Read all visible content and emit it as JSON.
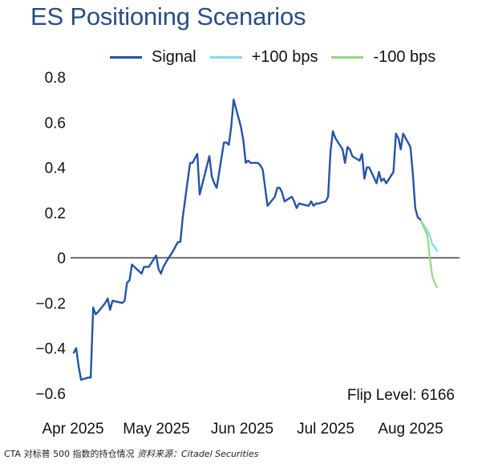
{
  "chart_data": {
    "type": "line",
    "title": "ES Positioning Scenarios",
    "x_ticks": [
      "Apr 2025",
      "May 2025",
      "Jun 2025",
      "Jul 2025",
      "Aug 2025"
    ],
    "y_ticks": [
      "0.8",
      "0.6",
      "0.4",
      "0.2",
      "0",
      "−0.2",
      "−0.4",
      "−0.6"
    ],
    "ylim": [
      -0.65,
      0.83
    ],
    "zero_line": true,
    "grid": false,
    "legend_position": "top",
    "annotation": "Flip Level: 6166",
    "series": [
      {
        "name": "Signal",
        "color": "#2553a6",
        "points": [
          [
            "2025-04-01",
            -0.42
          ],
          [
            "2025-04-02",
            -0.4
          ],
          [
            "2025-04-03",
            -0.48
          ],
          [
            "2025-04-04",
            -0.54
          ],
          [
            "2025-04-07",
            -0.53
          ],
          [
            "2025-04-08",
            -0.53
          ],
          [
            "2025-04-09",
            -0.22
          ],
          [
            "2025-04-10",
            -0.25
          ],
          [
            "2025-04-11",
            -0.24
          ],
          [
            "2025-04-14",
            -0.2
          ],
          [
            "2025-04-15",
            -0.18
          ],
          [
            "2025-04-16",
            -0.23
          ],
          [
            "2025-04-17",
            -0.19
          ],
          [
            "2025-04-21",
            -0.2
          ],
          [
            "2025-04-22",
            -0.19
          ],
          [
            "2025-04-23",
            -0.11
          ],
          [
            "2025-04-24",
            -0.1
          ],
          [
            "2025-04-25",
            -0.03
          ],
          [
            "2025-04-28",
            -0.06
          ],
          [
            "2025-04-29",
            -0.07
          ],
          [
            "2025-04-30",
            -0.04
          ],
          [
            "2025-05-01",
            -0.04
          ],
          [
            "2025-05-02",
            -0.04
          ],
          [
            "2025-05-05",
            0.01
          ],
          [
            "2025-05-06",
            -0.05
          ],
          [
            "2025-05-07",
            -0.07
          ],
          [
            "2025-05-08",
            -0.04
          ],
          [
            "2025-05-09",
            -0.02
          ],
          [
            "2025-05-12",
            0.03
          ],
          [
            "2025-05-13",
            0.05
          ],
          [
            "2025-05-14",
            0.07
          ],
          [
            "2025-05-15",
            0.07
          ],
          [
            "2025-05-16",
            0.18
          ],
          [
            "2025-05-19",
            0.42
          ],
          [
            "2025-05-20",
            0.42
          ],
          [
            "2025-05-21",
            0.44
          ],
          [
            "2025-05-22",
            0.46
          ],
          [
            "2025-05-23",
            0.28
          ],
          [
            "2025-05-27",
            0.45
          ],
          [
            "2025-05-28",
            0.36
          ],
          [
            "2025-05-29",
            0.33
          ],
          [
            "2025-05-30",
            0.31
          ],
          [
            "2025-06-02",
            0.51
          ],
          [
            "2025-06-03",
            0.51
          ],
          [
            "2025-06-04",
            0.5
          ],
          [
            "2025-06-05",
            0.58
          ],
          [
            "2025-06-06",
            0.7
          ],
          [
            "2025-06-09",
            0.58
          ],
          [
            "2025-06-10",
            0.52
          ],
          [
            "2025-06-11",
            0.42
          ],
          [
            "2025-06-12",
            0.43
          ],
          [
            "2025-06-13",
            0.42
          ],
          [
            "2025-06-16",
            0.42
          ],
          [
            "2025-06-17",
            0.41
          ],
          [
            "2025-06-18",
            0.39
          ],
          [
            "2025-06-20",
            0.23
          ],
          [
            "2025-06-23",
            0.27
          ],
          [
            "2025-06-24",
            0.31
          ],
          [
            "2025-06-25",
            0.31
          ],
          [
            "2025-06-26",
            0.29
          ],
          [
            "2025-06-27",
            0.25
          ],
          [
            "2025-06-30",
            0.27
          ],
          [
            "2025-07-01",
            0.25
          ],
          [
            "2025-07-02",
            0.22
          ],
          [
            "2025-07-03",
            0.24
          ],
          [
            "2025-07-07",
            0.23
          ],
          [
            "2025-07-08",
            0.25
          ],
          [
            "2025-07-09",
            0.23
          ],
          [
            "2025-07-10",
            0.24
          ],
          [
            "2025-07-11",
            0.24
          ],
          [
            "2025-07-14",
            0.25
          ],
          [
            "2025-07-15",
            0.27
          ],
          [
            "2025-07-16",
            0.47
          ],
          [
            "2025-07-17",
            0.56
          ],
          [
            "2025-07-18",
            0.53
          ],
          [
            "2025-07-21",
            0.48
          ],
          [
            "2025-07-22",
            0.42
          ],
          [
            "2025-07-23",
            0.49
          ],
          [
            "2025-07-24",
            0.48
          ],
          [
            "2025-07-25",
            0.45
          ],
          [
            "2025-07-28",
            0.43
          ],
          [
            "2025-07-29",
            0.46
          ],
          [
            "2025-07-30",
            0.35
          ],
          [
            "2025-07-31",
            0.4
          ],
          [
            "2025-08-01",
            0.4
          ],
          [
            "2025-08-04",
            0.33
          ],
          [
            "2025-08-05",
            0.38
          ],
          [
            "2025-08-06",
            0.34
          ],
          [
            "2025-08-07",
            0.35
          ],
          [
            "2025-08-08",
            0.33
          ],
          [
            "2025-08-11",
            0.38
          ],
          [
            "2025-08-12",
            0.55
          ],
          [
            "2025-08-13",
            0.53
          ],
          [
            "2025-08-14",
            0.48
          ],
          [
            "2025-08-15",
            0.55
          ],
          [
            "2025-08-18",
            0.49
          ],
          [
            "2025-08-19",
            0.37
          ],
          [
            "2025-08-20",
            0.22
          ],
          [
            "2025-08-21",
            0.18
          ],
          [
            "2025-08-22",
            0.17
          ]
        ]
      },
      {
        "name": "+100 bps",
        "color": "#7fdcee",
        "points": [
          [
            "2025-08-22",
            0.17
          ],
          [
            "2025-08-25",
            0.12
          ],
          [
            "2025-08-26",
            0.1
          ],
          [
            "2025-08-27",
            0.06
          ],
          [
            "2025-08-28",
            0.05
          ],
          [
            "2025-08-29",
            0.03
          ]
        ]
      },
      {
        "name": "-100 bps",
        "color": "#95d97e",
        "points": [
          [
            "2025-08-22",
            0.17
          ],
          [
            "2025-08-25",
            0.1
          ],
          [
            "2025-08-26",
            0.0
          ],
          [
            "2025-08-27",
            -0.08
          ],
          [
            "2025-08-28",
            -0.11
          ],
          [
            "2025-08-29",
            -0.13
          ]
        ]
      }
    ]
  },
  "caption": {
    "text": "CTA 对标普 500 指数的持仓情况",
    "source": "资料来源：Citadel Securities"
  }
}
